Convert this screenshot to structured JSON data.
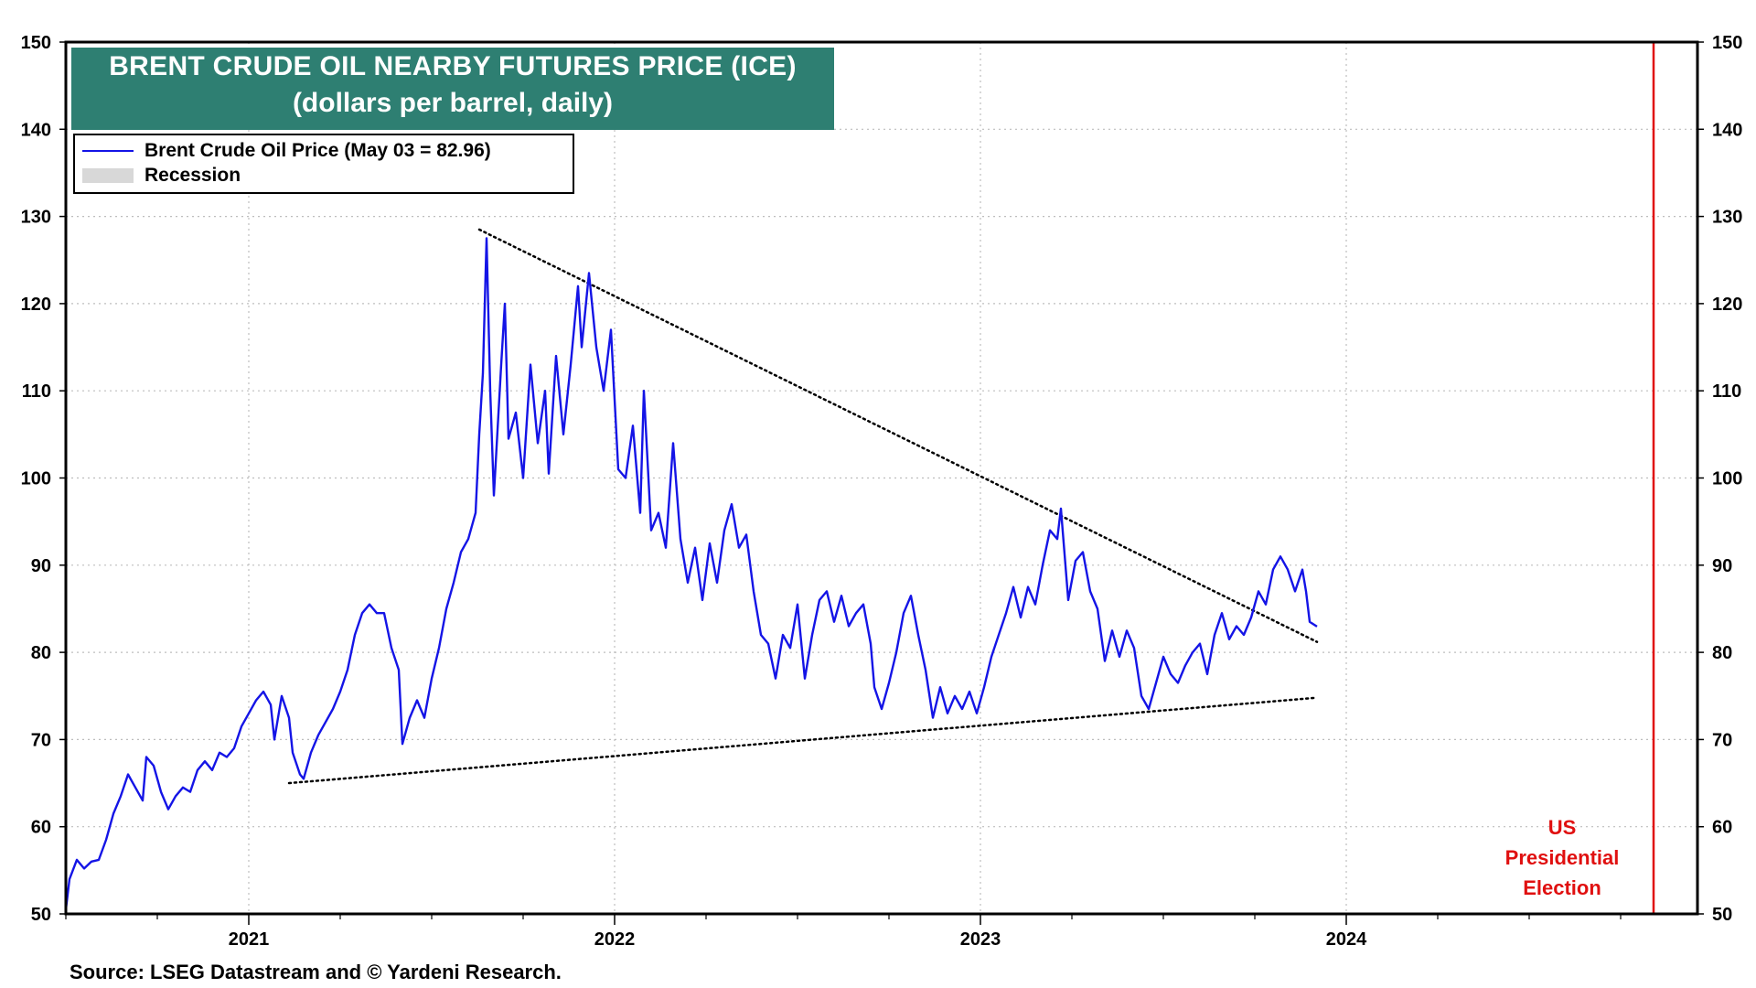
{
  "chart_data": {
    "type": "line",
    "title": "BRENT CRUDE OIL NEARBY FUTURES  PRICE (ICE)",
    "subtitle": "(dollars per barrel, daily)",
    "ylim": [
      50,
      150
    ],
    "y_ticks": [
      50,
      60,
      70,
      80,
      90,
      100,
      110,
      120,
      130,
      140,
      150
    ],
    "x_ticks": [
      "2021",
      "2022",
      "2023",
      "2024"
    ],
    "x_range": [
      2020.5,
      2024.96
    ],
    "grid": true,
    "legend_position": "top-left",
    "legend": [
      {
        "label": "Brent Crude Oil Price (May 03 = 82.96)",
        "kind": "line",
        "color": "#1414e6"
      },
      {
        "label": "Recession",
        "kind": "shade",
        "color": "#d8d8d8"
      }
    ],
    "series": [
      {
        "name": "Brent Crude Oil Price (May 03 = 82.96)",
        "color": "#1414e6",
        "points": [
          [
            2020.5,
            50.5
          ],
          [
            2020.51,
            54.0
          ],
          [
            2020.53,
            56.2
          ],
          [
            2020.55,
            55.2
          ],
          [
            2020.57,
            56.0
          ],
          [
            2020.59,
            56.2
          ],
          [
            2020.61,
            58.5
          ],
          [
            2020.63,
            61.5
          ],
          [
            2020.65,
            63.5
          ],
          [
            2020.67,
            66.0
          ],
          [
            2020.69,
            64.5
          ],
          [
            2020.71,
            63.0
          ],
          [
            2020.72,
            68.0
          ],
          [
            2020.74,
            67.0
          ],
          [
            2020.76,
            64.0
          ],
          [
            2020.78,
            62.0
          ],
          [
            2020.8,
            63.5
          ],
          [
            2020.82,
            64.5
          ],
          [
            2020.84,
            64.0
          ],
          [
            2020.86,
            66.5
          ],
          [
            2020.88,
            67.5
          ],
          [
            2020.9,
            66.5
          ],
          [
            2020.92,
            68.5
          ],
          [
            2020.94,
            68.0
          ],
          [
            2020.96,
            69.0
          ],
          [
            2020.98,
            71.5
          ],
          [
            2021.0,
            73.0
          ],
          [
            2021.02,
            74.5
          ],
          [
            2021.04,
            75.5
          ],
          [
            2021.06,
            74.0
          ],
          [
            2021.07,
            70.0
          ],
          [
            2021.09,
            75.0
          ],
          [
            2021.11,
            72.5
          ],
          [
            2021.12,
            68.5
          ],
          [
            2021.14,
            66.0
          ],
          [
            2021.15,
            65.5
          ],
          [
            2021.17,
            68.5
          ],
          [
            2021.19,
            70.5
          ],
          [
            2021.21,
            72.0
          ],
          [
            2021.23,
            73.5
          ],
          [
            2021.25,
            75.5
          ],
          [
            2021.27,
            78.0
          ],
          [
            2021.29,
            82.0
          ],
          [
            2021.31,
            84.5
          ],
          [
            2021.33,
            85.5
          ],
          [
            2021.35,
            84.5
          ],
          [
            2021.37,
            84.5
          ],
          [
            2021.39,
            80.5
          ],
          [
            2021.41,
            78.0
          ],
          [
            2021.42,
            69.5
          ],
          [
            2021.44,
            72.5
          ],
          [
            2021.46,
            74.5
          ],
          [
            2021.48,
            72.5
          ],
          [
            2021.5,
            77.0
          ],
          [
            2021.52,
            80.5
          ],
          [
            2021.54,
            85.0
          ],
          [
            2021.56,
            88.0
          ],
          [
            2021.58,
            91.5
          ],
          [
            2021.6,
            93.0
          ],
          [
            2021.62,
            96.0
          ],
          [
            2021.63,
            105.0
          ],
          [
            2021.64,
            112.0
          ],
          [
            2021.65,
            127.5
          ],
          [
            2021.66,
            110.0
          ],
          [
            2021.67,
            98.0
          ],
          [
            2021.69,
            113.0
          ],
          [
            2021.7,
            120.0
          ],
          [
            2021.71,
            104.5
          ],
          [
            2021.73,
            107.5
          ],
          [
            2021.75,
            100.0
          ],
          [
            2021.77,
            113.0
          ],
          [
            2021.79,
            104.0
          ],
          [
            2021.81,
            110.0
          ],
          [
            2021.82,
            100.5
          ],
          [
            2021.84,
            114.0
          ],
          [
            2021.86,
            105.0
          ],
          [
            2021.88,
            113.0
          ],
          [
            2021.9,
            122.0
          ],
          [
            2021.91,
            115.0
          ],
          [
            2021.93,
            123.5
          ],
          [
            2021.95,
            115.0
          ],
          [
            2021.97,
            110.0
          ],
          [
            2021.99,
            117.0
          ],
          [
            2022.01,
            101.0
          ],
          [
            2022.03,
            100.0
          ],
          [
            2022.05,
            106.0
          ],
          [
            2022.07,
            96.0
          ],
          [
            2022.08,
            110.0
          ],
          [
            2022.1,
            94.0
          ],
          [
            2022.12,
            96.0
          ],
          [
            2022.14,
            92.0
          ],
          [
            2022.16,
            104.0
          ],
          [
            2022.18,
            93.0
          ],
          [
            2022.2,
            88.0
          ],
          [
            2022.22,
            92.0
          ],
          [
            2022.24,
            86.0
          ],
          [
            2022.26,
            92.5
          ],
          [
            2022.28,
            88.0
          ],
          [
            2022.3,
            94.0
          ],
          [
            2022.32,
            97.0
          ],
          [
            2022.34,
            92.0
          ],
          [
            2022.36,
            93.5
          ],
          [
            2022.38,
            87.0
          ],
          [
            2022.4,
            82.0
          ],
          [
            2022.42,
            81.0
          ],
          [
            2022.44,
            77.0
          ],
          [
            2022.46,
            82.0
          ],
          [
            2022.48,
            80.5
          ],
          [
            2022.5,
            85.5
          ],
          [
            2022.52,
            77.0
          ],
          [
            2022.54,
            82.0
          ],
          [
            2022.56,
            86.0
          ],
          [
            2022.58,
            87.0
          ],
          [
            2022.6,
            83.5
          ],
          [
            2022.62,
            86.5
          ],
          [
            2022.64,
            83.0
          ],
          [
            2022.66,
            84.5
          ],
          [
            2022.68,
            85.5
          ],
          [
            2022.7,
            81.0
          ],
          [
            2022.71,
            76.0
          ],
          [
            2022.73,
            73.5
          ],
          [
            2022.75,
            76.5
          ],
          [
            2022.77,
            80.0
          ],
          [
            2022.79,
            84.5
          ],
          [
            2022.81,
            86.5
          ],
          [
            2022.83,
            82.0
          ],
          [
            2022.85,
            78.0
          ],
          [
            2022.87,
            72.5
          ],
          [
            2022.89,
            76.0
          ],
          [
            2022.91,
            73.0
          ],
          [
            2022.93,
            75.0
          ],
          [
            2022.95,
            73.5
          ],
          [
            2022.97,
            75.5
          ],
          [
            2022.99,
            73.0
          ],
          [
            2023.01,
            76.0
          ],
          [
            2023.03,
            79.5
          ],
          [
            2023.05,
            82.0
          ],
          [
            2023.07,
            84.5
          ],
          [
            2023.09,
            87.5
          ],
          [
            2023.11,
            84.0
          ],
          [
            2023.13,
            87.5
          ],
          [
            2023.15,
            85.5
          ],
          [
            2023.17,
            90.0
          ],
          [
            2023.19,
            94.0
          ],
          [
            2023.21,
            93.0
          ],
          [
            2023.22,
            96.5
          ],
          [
            2023.24,
            86.0
          ],
          [
            2023.26,
            90.5
          ],
          [
            2023.28,
            91.5
          ],
          [
            2023.3,
            87.0
          ],
          [
            2023.32,
            85.0
          ],
          [
            2023.34,
            79.0
          ],
          [
            2023.36,
            82.5
          ],
          [
            2023.38,
            79.5
          ],
          [
            2023.4,
            82.5
          ],
          [
            2023.42,
            80.5
          ],
          [
            2023.44,
            75.0
          ],
          [
            2023.46,
            73.5
          ],
          [
            2023.48,
            76.5
          ],
          [
            2023.5,
            79.5
          ],
          [
            2023.52,
            77.5
          ],
          [
            2023.54,
            76.5
          ],
          [
            2023.56,
            78.5
          ],
          [
            2023.58,
            80.0
          ],
          [
            2023.6,
            81.0
          ],
          [
            2023.62,
            77.5
          ],
          [
            2023.64,
            82.0
          ],
          [
            2023.66,
            84.5
          ],
          [
            2023.68,
            81.5
          ],
          [
            2023.7,
            83.0
          ],
          [
            2023.72,
            82.0
          ],
          [
            2023.74,
            84.0
          ],
          [
            2023.76,
            87.0
          ],
          [
            2023.78,
            85.5
          ],
          [
            2023.8,
            89.5
          ],
          [
            2023.82,
            91.0
          ],
          [
            2023.84,
            89.5
          ],
          [
            2023.86,
            87.0
          ],
          [
            2023.88,
            89.5
          ],
          [
            2023.89,
            87.0
          ],
          [
            2023.9,
            83.5
          ],
          [
            2023.92,
            82.96
          ]
        ]
      }
    ],
    "trendlines": [
      {
        "style": "dotted",
        "points": [
          [
            2021.63,
            128.5
          ],
          [
            2023.92,
            81.2
          ]
        ]
      },
      {
        "style": "dotted",
        "points": [
          [
            2021.11,
            65.0
          ],
          [
            2023.92,
            74.8
          ]
        ]
      }
    ],
    "annotation_election": [
      "US",
      "Presidential",
      "Election"
    ],
    "election_x": 2024.84,
    "election_color": "#e01010",
    "source": "Source: LSEG Datastream and © Yardeni Research."
  }
}
